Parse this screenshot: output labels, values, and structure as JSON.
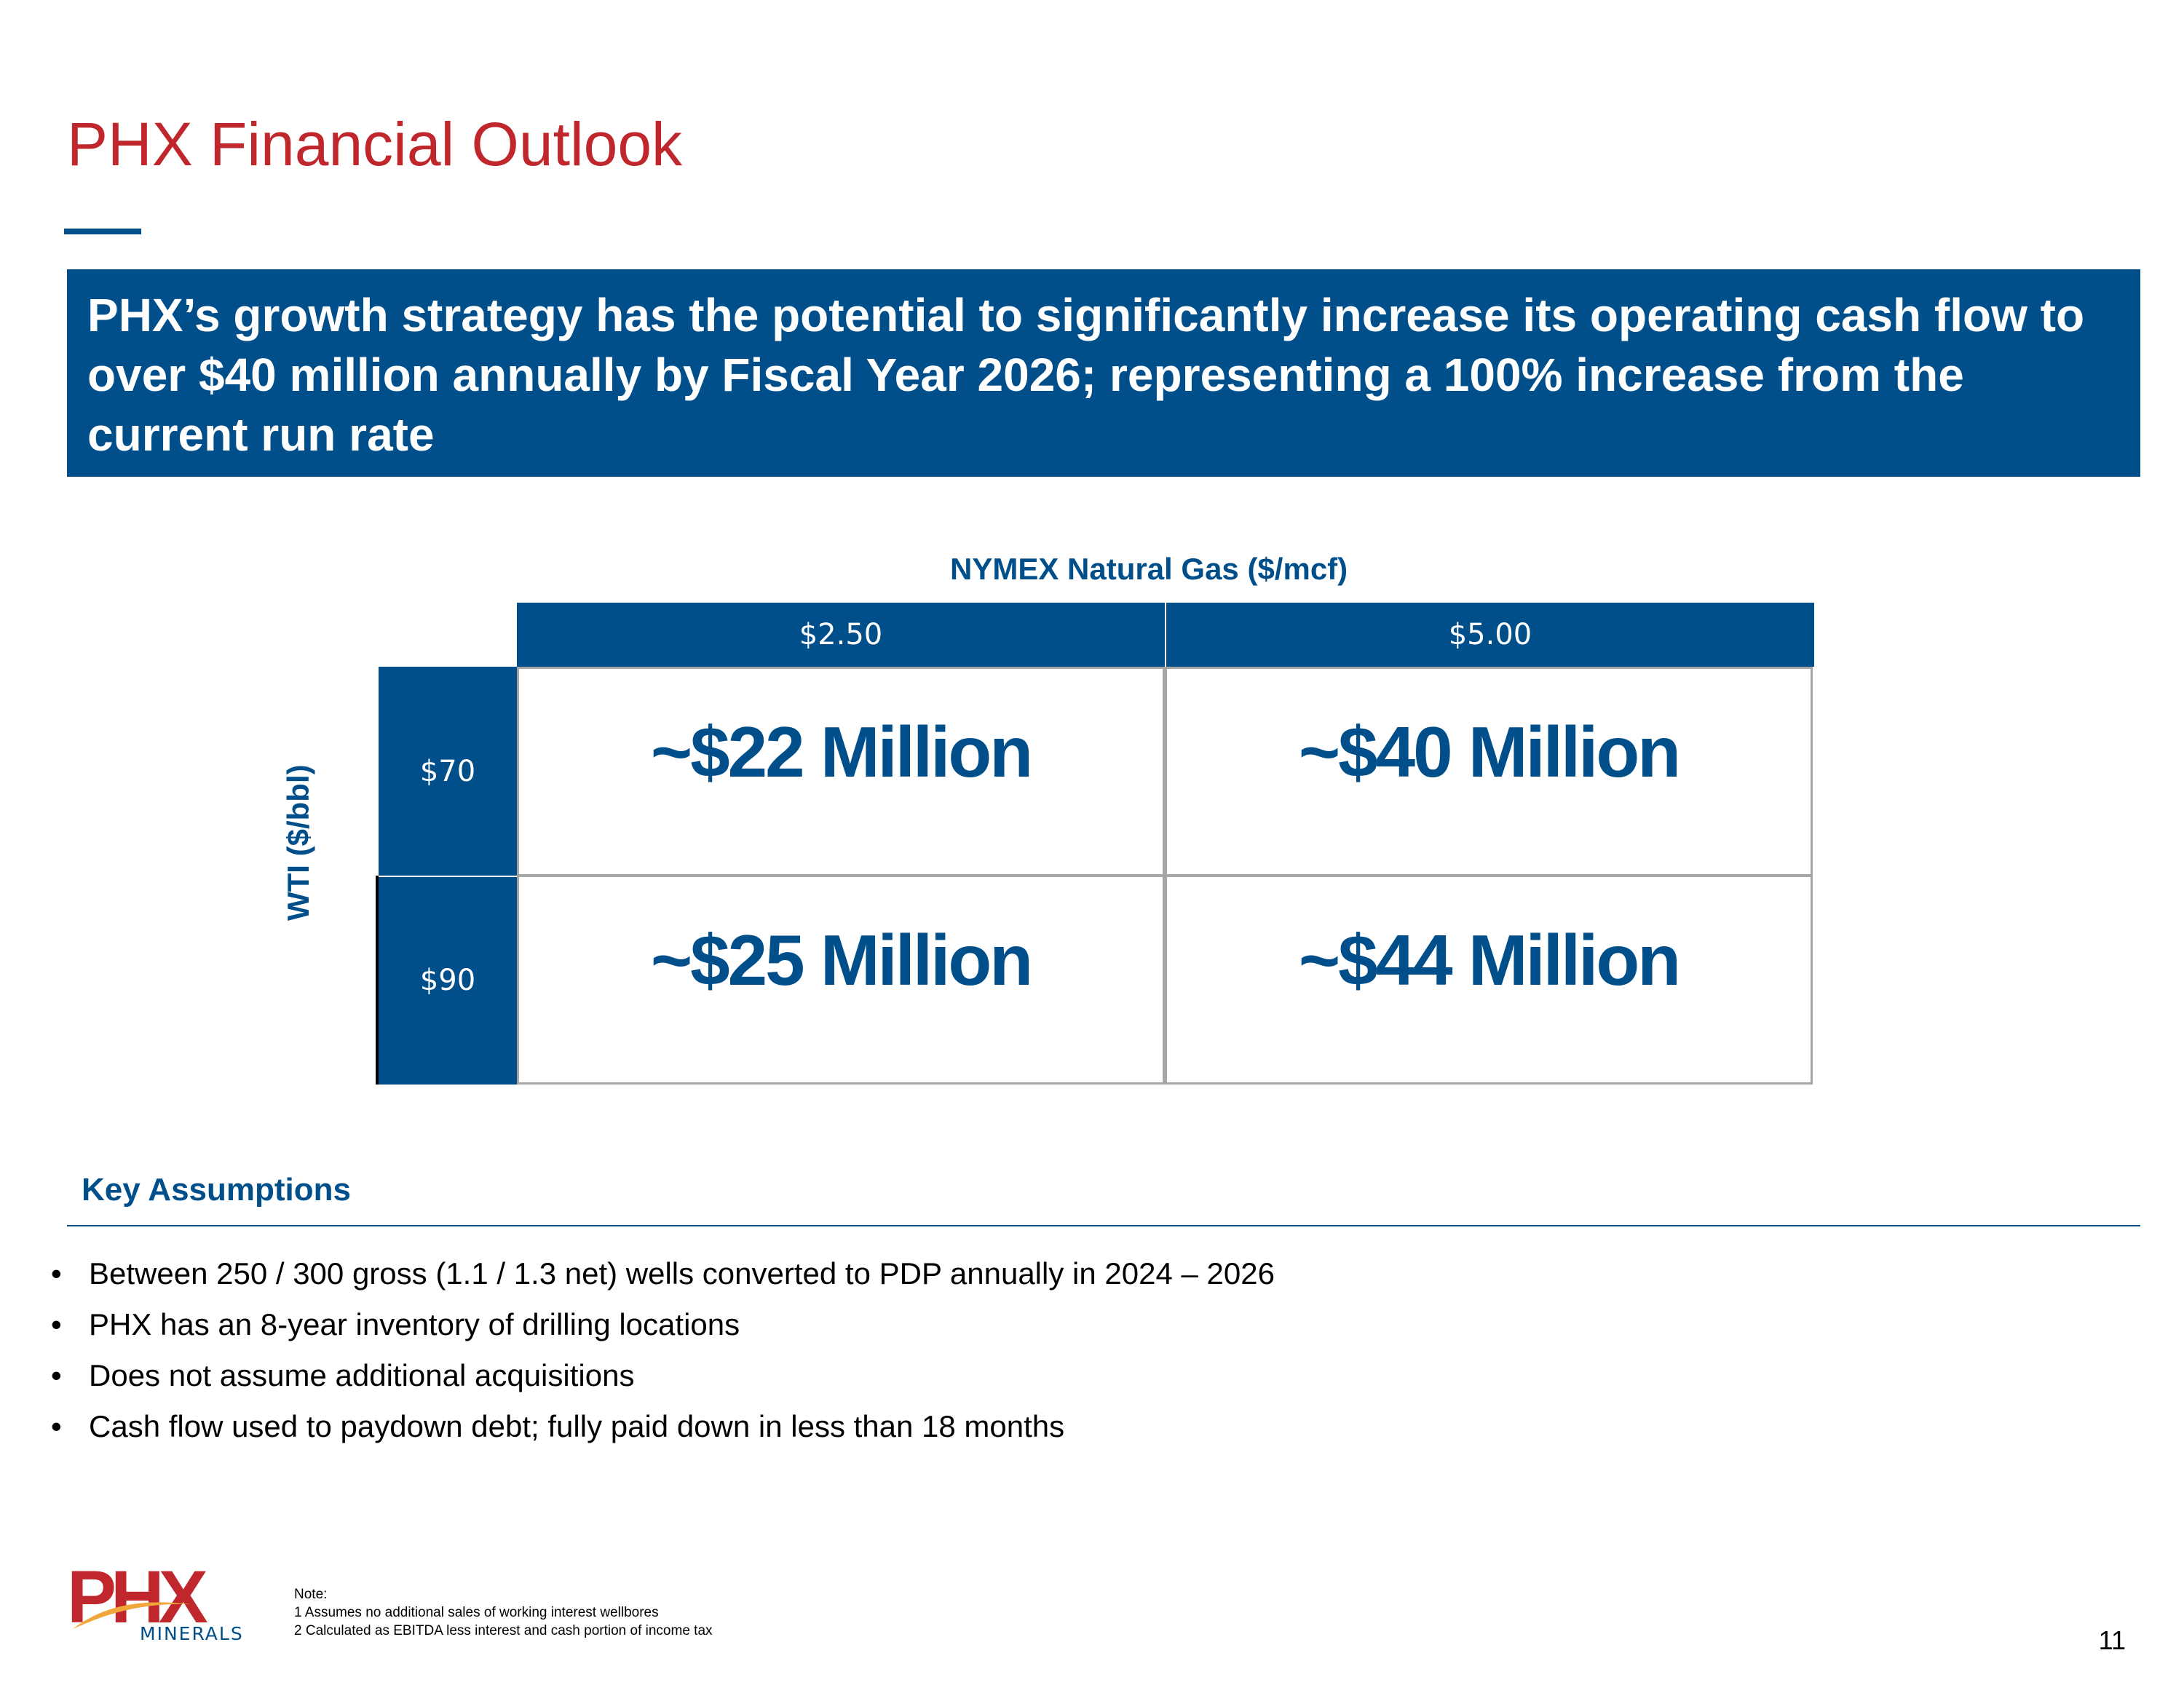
{
  "slide": {
    "title": "PHX Financial Outlook",
    "banner": "PHX’s growth strategy has the potential to significantly increase its operating cash flow to over $40 million annually by Fiscal Year 2026; representing a 100% increase from the current run rate",
    "page_number": "11"
  },
  "matrix": {
    "column_axis_label": "NYMEX Natural Gas ($/mcf)",
    "row_axis_label": "WTI ($/bbl)",
    "columns": [
      "$2.50",
      "$5.00"
    ],
    "rows": [
      {
        "label": "$70",
        "values": [
          "~$22 Million",
          "~$40 Million"
        ]
      },
      {
        "label": "$90",
        "values": [
          "~$25 Million",
          "~$44 Million"
        ]
      }
    ]
  },
  "assumptions": {
    "heading": "Key Assumptions",
    "bullet_symbol": "•",
    "items": [
      "Between 250 / 300 gross  (1.1 / 1.3 net) wells converted to PDP annually in 2024 – 2026",
      "PHX has an 8-year inventory of drilling locations",
      "Does not assume additional acquisitions",
      "Cash flow used to paydown debt; fully paid down in less than 18 months"
    ]
  },
  "footer": {
    "logo_text": "PHX",
    "logo_subtext": "MINERALS",
    "notes": [
      "Note:",
      "1 Assumes no additional sales of working interest wellbores",
      "2 Calculated as EBITDA less interest and cash portion of income tax"
    ]
  },
  "colors": {
    "brand_blue": "#004f8b",
    "brand_red": "#c0272d",
    "grid_gray": "#a6a6a6"
  }
}
